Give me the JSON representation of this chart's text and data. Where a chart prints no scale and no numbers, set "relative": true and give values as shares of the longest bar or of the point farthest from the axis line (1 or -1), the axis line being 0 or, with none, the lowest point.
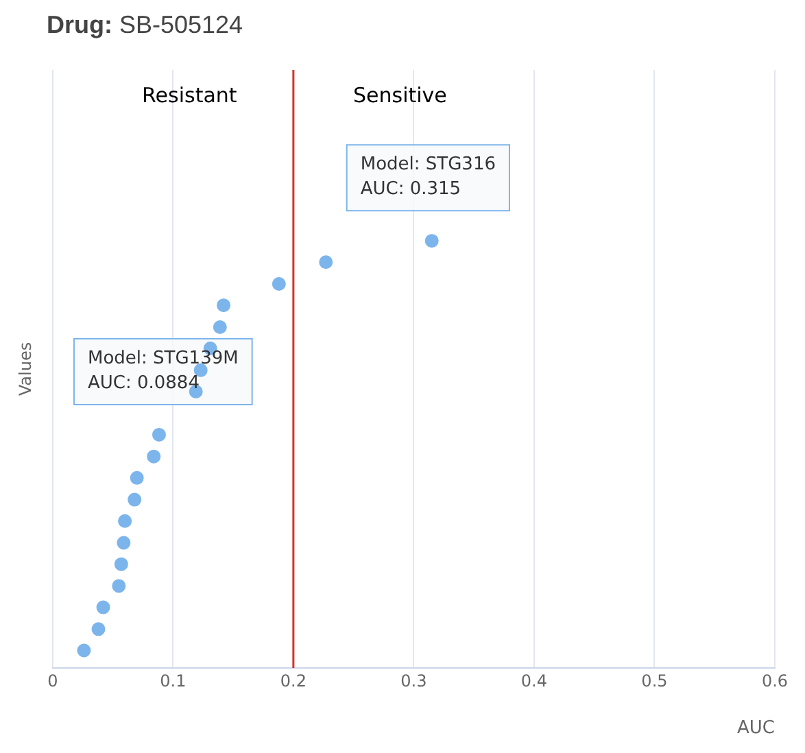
{
  "chart_data": {
    "type": "scatter",
    "title": "Drug: SB-505124",
    "xlabel": "AUC",
    "ylabel": "Values",
    "relative": true,
    "x": [
      0.026,
      0.038,
      0.042,
      0.055,
      0.057,
      0.059,
      0.06,
      0.068,
      0.07,
      0.084,
      0.0884,
      0.119,
      0.123,
      0.131,
      0.139,
      0.142,
      0.188,
      0.227,
      0.315
    ],
    "series": [
      {
        "color": "#7cb5ec",
        "values": [
          0.041,
          0.091,
          0.142,
          0.192,
          0.243,
          0.293,
          0.344,
          0.394,
          0.445,
          0.495,
          0.546,
          0.647,
          0.697,
          0.748,
          0.798,
          0.849,
          0.899,
          0.95,
          1
        ]
      }
    ],
    "xlim": [
      0,
      0.6
    ],
    "xticks": [
      0,
      0.1,
      0.2,
      0.3,
      0.4,
      0.5,
      0.6
    ],
    "ref_lines": [
      {
        "axis": "x",
        "value": 0.2,
        "color": "#d0342c"
      }
    ],
    "annotations": [
      "Resistant",
      "Sensitive",
      {
        "text": "Model: STG139M\nAUC: 0.0884",
        "x": 0.0884,
        "y": 0.546
      },
      {
        "text": "Model: STG316\nAUC: 0.315",
        "x": 0.315,
        "y": 1
      }
    ],
    "grid": "x",
    "legend": false,
    "marker": "circle"
  }
}
